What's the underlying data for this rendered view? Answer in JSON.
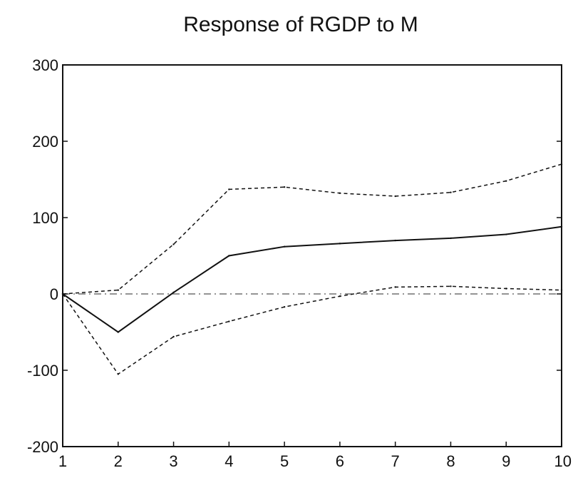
{
  "chart_data": {
    "type": "line",
    "title": "Response of RGDP to M",
    "xlabel": "",
    "ylabel": "",
    "x": [
      1,
      2,
      3,
      4,
      5,
      6,
      7,
      8,
      9,
      10
    ],
    "xlim": [
      1,
      10
    ],
    "ylim": [
      -200,
      300
    ],
    "xticks": [
      "1",
      "2",
      "3",
      "4",
      "5",
      "6",
      "7",
      "8",
      "9",
      "10"
    ],
    "yticks": [
      300,
      200,
      100,
      0,
      -100,
      -200
    ],
    "ytick_labels": [
      "300",
      "200",
      "100",
      "0",
      "-100",
      "-200"
    ],
    "grid": false,
    "legend": "none",
    "series": [
      {
        "role": "response",
        "style": "solid",
        "values": [
          0,
          -50,
          2,
          50,
          62,
          66,
          70,
          73,
          78,
          88
        ]
      },
      {
        "role": "upper-band",
        "style": "dashed",
        "values": [
          0,
          5,
          65,
          137,
          140,
          132,
          128,
          133,
          148,
          170
        ]
      },
      {
        "role": "lower-band",
        "style": "dashed",
        "values": [
          0,
          -105,
          -56,
          -36,
          -17,
          -3,
          9,
          10,
          7,
          5
        ]
      }
    ],
    "reference_line": {
      "y": 0,
      "style": "dash-dot",
      "color": "#555555"
    },
    "colors": {
      "line": "#111111",
      "axis": "#111111",
      "background": "#ffffff"
    }
  }
}
